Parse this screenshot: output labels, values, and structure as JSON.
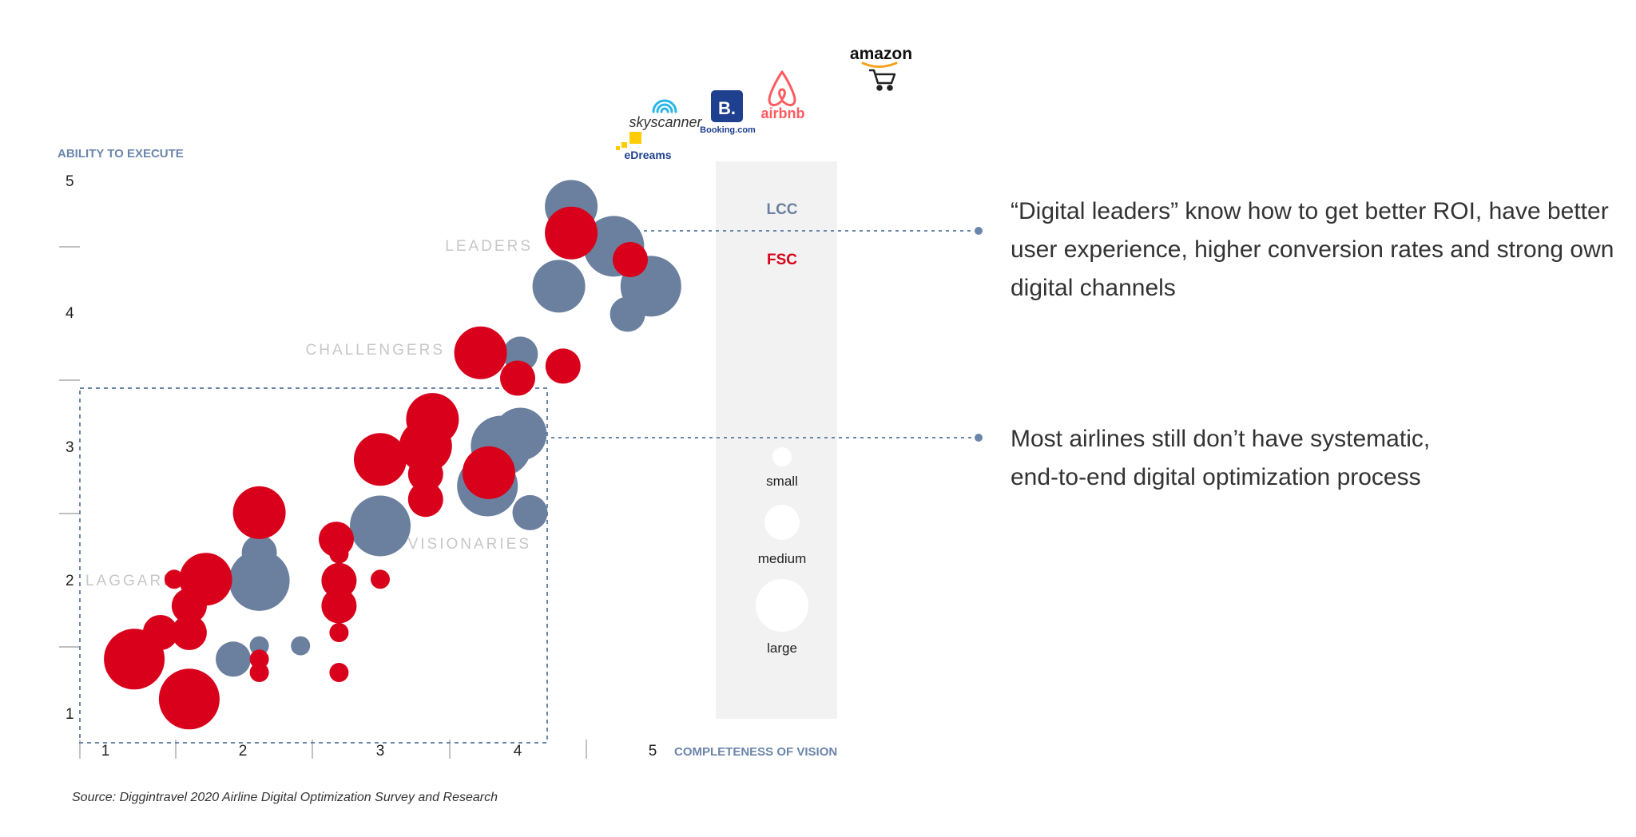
{
  "chart_data": {
    "type": "scatter",
    "xlabel": "COMPLETENESS OF VISION",
    "ylabel": "ABILITY TO EXECUTE",
    "xlim": [
      0.8,
      5.0
    ],
    "ylim": [
      0.8,
      5.0
    ],
    "x_ticks": [
      "1",
      "2",
      "3",
      "4",
      "5"
    ],
    "y_ticks": [
      "1",
      "2",
      "3",
      "4",
      "5"
    ],
    "quadrant_labels": [
      "LEADERS",
      "CHALLENGERS",
      "VISIONARIES",
      "LAGGARDS"
    ],
    "bubble_size_legend": [
      "small",
      "medium",
      "large"
    ],
    "series": [
      {
        "name": "LCC",
        "color": "#6b809e",
        "points": [
          {
            "x": 4.39,
            "y": 4.8,
            "size": "medium"
          },
          {
            "x": 4.7,
            "y": 4.5,
            "size": "large"
          },
          {
            "x": 4.3,
            "y": 4.2,
            "size": "medium"
          },
          {
            "x": 4.97,
            "y": 4.2,
            "size": "large"
          },
          {
            "x": 4.8,
            "y": 3.99,
            "size": "small"
          },
          {
            "x": 4.02,
            "y": 3.69,
            "size": "small"
          },
          {
            "x": 4.02,
            "y": 3.09,
            "size": "medium"
          },
          {
            "x": 3.88,
            "y": 3.0,
            "size": "large"
          },
          {
            "x": 3.78,
            "y": 2.7,
            "size": "large"
          },
          {
            "x": 4.09,
            "y": 2.5,
            "size": "small"
          },
          {
            "x": 3.0,
            "y": 2.4,
            "size": "large"
          },
          {
            "x": 2.12,
            "y": 2.2,
            "size": "small"
          },
          {
            "x": 2.12,
            "y": 1.99,
            "size": "large"
          },
          {
            "x": 2.7,
            "y": 1.99,
            "size": "small"
          },
          {
            "x": 2.12,
            "y": 1.5,
            "size": "tiny"
          },
          {
            "x": 2.42,
            "y": 1.5,
            "size": "tiny"
          },
          {
            "x": 1.93,
            "y": 1.4,
            "size": "small"
          }
        ]
      },
      {
        "name": "FSC",
        "color": "#d8001a",
        "points": [
          {
            "x": 4.39,
            "y": 4.6,
            "size": "medium"
          },
          {
            "x": 4.82,
            "y": 4.4,
            "size": "small"
          },
          {
            "x": 3.73,
            "y": 3.7,
            "size": "medium"
          },
          {
            "x": 4.33,
            "y": 3.6,
            "size": "small"
          },
          {
            "x": 4.0,
            "y": 3.51,
            "size": "small"
          },
          {
            "x": 3.38,
            "y": 3.2,
            "size": "medium"
          },
          {
            "x": 3.33,
            "y": 3.0,
            "size": "medium"
          },
          {
            "x": 3.0,
            "y": 2.9,
            "size": "medium"
          },
          {
            "x": 3.79,
            "y": 2.8,
            "size": "medium"
          },
          {
            "x": 3.33,
            "y": 2.79,
            "size": "small"
          },
          {
            "x": 3.33,
            "y": 2.6,
            "size": "small"
          },
          {
            "x": 2.12,
            "y": 2.5,
            "size": "medium"
          },
          {
            "x": 2.68,
            "y": 2.3,
            "size": "small"
          },
          {
            "x": 2.7,
            "y": 2.19,
            "size": "tiny"
          },
          {
            "x": 1.73,
            "y": 2.0,
            "size": "medium"
          },
          {
            "x": 1.5,
            "y": 2.0,
            "size": "tiny"
          },
          {
            "x": 3.0,
            "y": 2.0,
            "size": "tiny"
          },
          {
            "x": 2.7,
            "y": 1.99,
            "size": "small"
          },
          {
            "x": 2.7,
            "y": 1.8,
            "size": "small"
          },
          {
            "x": 1.61,
            "y": 1.8,
            "size": "small"
          },
          {
            "x": 2.7,
            "y": 1.6,
            "size": "tiny"
          },
          {
            "x": 1.61,
            "y": 1.6,
            "size": "small"
          },
          {
            "x": 1.4,
            "y": 1.6,
            "size": "small"
          },
          {
            "x": 1.21,
            "y": 1.4,
            "size": "large"
          },
          {
            "x": 1.12,
            "y": 1.3,
            "size": "tiny"
          },
          {
            "x": 2.12,
            "y": 1.4,
            "size": "tiny"
          },
          {
            "x": 2.12,
            "y": 1.3,
            "size": "tiny"
          },
          {
            "x": 2.7,
            "y": 1.3,
            "size": "tiny"
          },
          {
            "x": 1.61,
            "y": 1.1,
            "size": "large"
          }
        ]
      }
    ],
    "brand_logos": [
      "skyscanner",
      "Booking.com",
      "airbnb",
      "amazon",
      "eDreams"
    ]
  },
  "legend": {
    "lcc": "LCC",
    "fsc": "FSC",
    "lcc_color": "#6b809e",
    "fsc_color": "#d8001a"
  },
  "notes": {
    "leaders": "“Digital leaders”  know how to get better ROI, have better user experience, higher conversion rates and strong own digital channels",
    "most_airlines_line1": "Most airlines still don’t have systematic,",
    "most_airlines_line2": "end-to-end digital optimization process"
  },
  "logos": {
    "skyscanner": "skyscanner",
    "booking_letter": "B.",
    "booking": "Booking.com",
    "airbnb": "airbnb",
    "amazon": "amazon",
    "edreams": "eDreams"
  },
  "source": "Source: Diggintravel 2020 Airline Digital Optimization Survey and Research"
}
